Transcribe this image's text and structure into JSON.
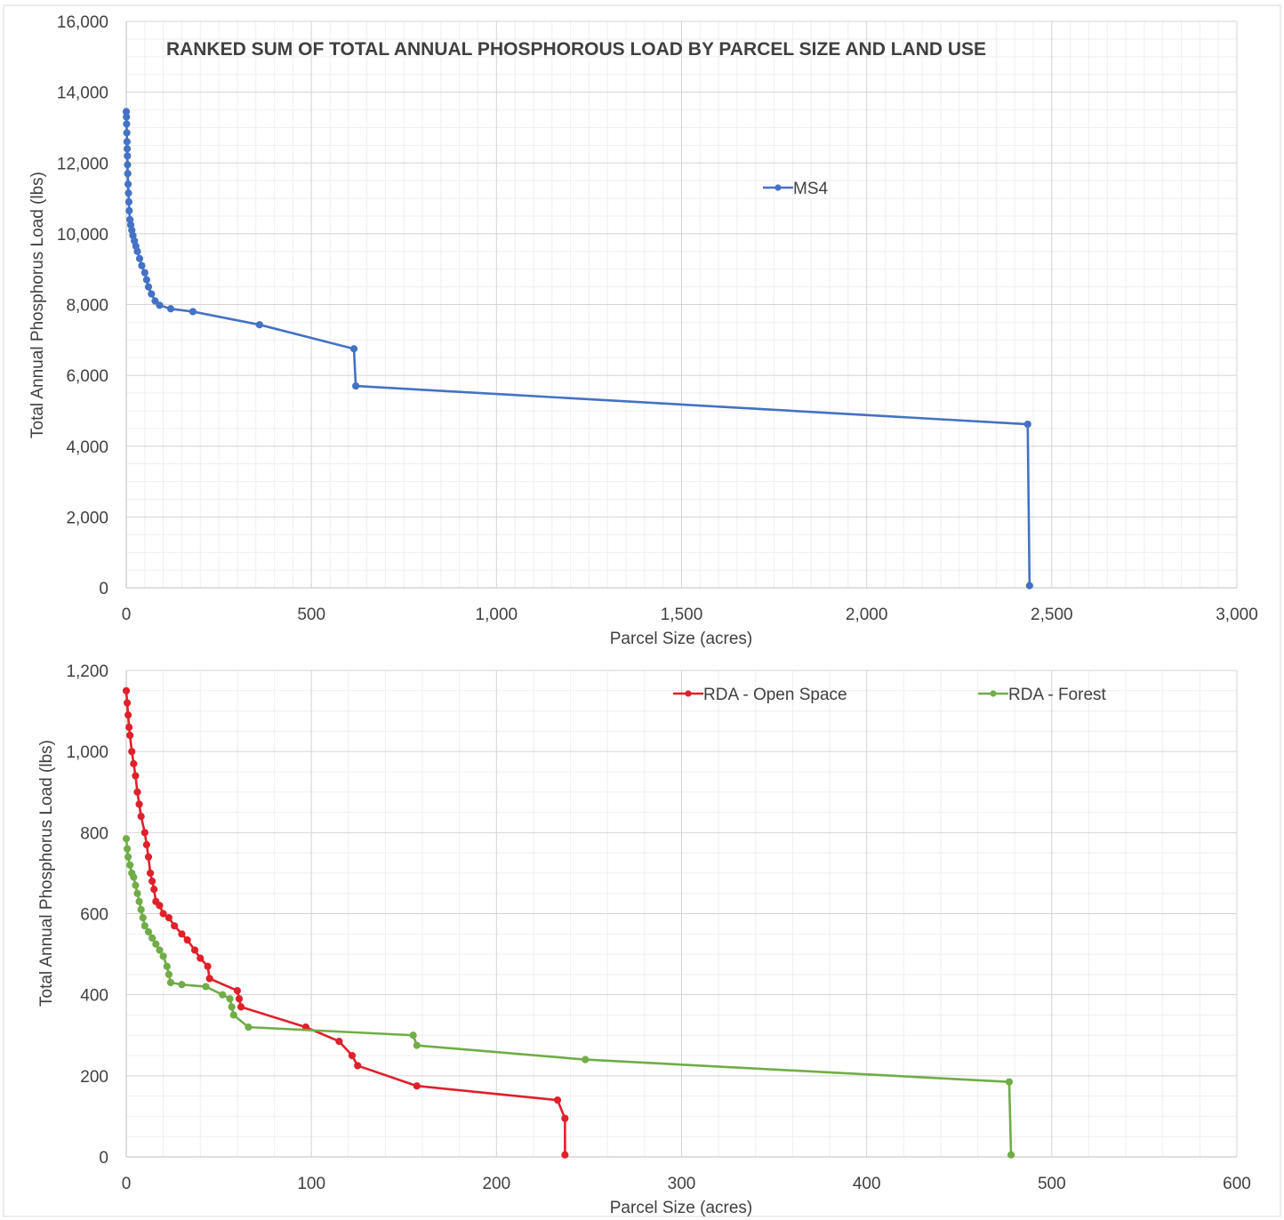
{
  "chart_data": [
    {
      "type": "line",
      "title": "RANKED SUM OF TOTAL ANNUAL PHOSPHOROUS LOAD BY PARCEL SIZE AND LAND USE",
      "xlabel": "Parcel Size (acres)",
      "ylabel": "Total Annual Phosphorus Load (lbs)",
      "xlim": [
        0,
        3000
      ],
      "ylim": [
        0,
        16000
      ],
      "x_ticks": [
        "0",
        "500",
        "1,000",
        "1,500",
        "2,000",
        "2,500",
        "3,000"
      ],
      "y_ticks": [
        "0",
        "2,000",
        "4,000",
        "6,000",
        "8,000",
        "10,000",
        "12,000",
        "14,000",
        "16,000"
      ],
      "grid": true,
      "legend": "top-right",
      "series": [
        {
          "name": "MS4",
          "color": "#4472C4",
          "points": [
            [
              0,
              13450
            ],
            [
              0.5,
              13300
            ],
            [
              1,
              13100
            ],
            [
              1.5,
              12850
            ],
            [
              2,
              12600
            ],
            [
              2.5,
              12400
            ],
            [
              3,
              12200
            ],
            [
              3.5,
              11950
            ],
            [
              4,
              11700
            ],
            [
              5,
              11400
            ],
            [
              6,
              11150
            ],
            [
              7,
              10900
            ],
            [
              8,
              10650
            ],
            [
              10,
              10400
            ],
            [
              12,
              10250
            ],
            [
              15,
              10100
            ],
            [
              18,
              9950
            ],
            [
              22,
              9800
            ],
            [
              26,
              9650
            ],
            [
              30,
              9500
            ],
            [
              36,
              9300
            ],
            [
              42,
              9100
            ],
            [
              50,
              8900
            ],
            [
              55,
              8700
            ],
            [
              60,
              8500
            ],
            [
              68,
              8300
            ],
            [
              78,
              8100
            ],
            [
              90,
              7980
            ],
            [
              120,
              7880
            ],
            [
              180,
              7800
            ],
            [
              360,
              7430
            ],
            [
              615,
              6750
            ],
            [
              620,
              5700
            ],
            [
              2435,
              4620
            ],
            [
              2440,
              60
            ]
          ]
        }
      ]
    },
    {
      "type": "line",
      "title": "",
      "xlabel": "Parcel Size (acres)",
      "ylabel": "Total Annual Phosphorus Load (lbs)",
      "xlim": [
        0,
        600
      ],
      "ylim": [
        0,
        1200
      ],
      "x_ticks": [
        "0",
        "100",
        "200",
        "300",
        "400",
        "500",
        "600"
      ],
      "y_ticks": [
        "0",
        "200",
        "400",
        "600",
        "800",
        "1,000",
        "1,200"
      ],
      "grid": true,
      "legend": "top-right",
      "series": [
        {
          "name": "RDA - Open Space",
          "color": "#E0202A",
          "points": [
            [
              0,
              1150
            ],
            [
              0.5,
              1120
            ],
            [
              1,
              1090
            ],
            [
              1.5,
              1060
            ],
            [
              2,
              1040
            ],
            [
              3,
              1000
            ],
            [
              4,
              970
            ],
            [
              5,
              940
            ],
            [
              6,
              900
            ],
            [
              7,
              870
            ],
            [
              8,
              840
            ],
            [
              10,
              800
            ],
            [
              11,
              770
            ],
            [
              12,
              740
            ],
            [
              13,
              700
            ],
            [
              14,
              680
            ],
            [
              15,
              660
            ],
            [
              16,
              630
            ],
            [
              18,
              620
            ],
            [
              20,
              600
            ],
            [
              23,
              590
            ],
            [
              26,
              570
            ],
            [
              30,
              550
            ],
            [
              33,
              535
            ],
            [
              37,
              510
            ],
            [
              40,
              490
            ],
            [
              44,
              470
            ],
            [
              45,
              440
            ],
            [
              60,
              410
            ],
            [
              61,
              390
            ],
            [
              62,
              370
            ],
            [
              97,
              320
            ],
            [
              115,
              285
            ],
            [
              122,
              250
            ],
            [
              125,
              225
            ],
            [
              157,
              175
            ],
            [
              233,
              140
            ],
            [
              237,
              95
            ],
            [
              237,
              5
            ]
          ]
        },
        {
          "name": "RDA - Forest",
          "color": "#70AD47",
          "points": [
            [
              0,
              785
            ],
            [
              0.5,
              760
            ],
            [
              1,
              740
            ],
            [
              2,
              720
            ],
            [
              3,
              700
            ],
            [
              4,
              690
            ],
            [
              5,
              670
            ],
            [
              6,
              650
            ],
            [
              7,
              630
            ],
            [
              8,
              610
            ],
            [
              9,
              590
            ],
            [
              10,
              570
            ],
            [
              12,
              555
            ],
            [
              14,
              540
            ],
            [
              16,
              525
            ],
            [
              18,
              510
            ],
            [
              20,
              495
            ],
            [
              22,
              470
            ],
            [
              23,
              450
            ],
            [
              24,
              430
            ],
            [
              30,
              425
            ],
            [
              43,
              420
            ],
            [
              52,
              400
            ],
            [
              56,
              390
            ],
            [
              57,
              370
            ],
            [
              58,
              350
            ],
            [
              66,
              320
            ],
            [
              155,
              300
            ],
            [
              157,
              275
            ],
            [
              248,
              240
            ],
            [
              477,
              185
            ],
            [
              478,
              5
            ]
          ]
        }
      ]
    }
  ]
}
